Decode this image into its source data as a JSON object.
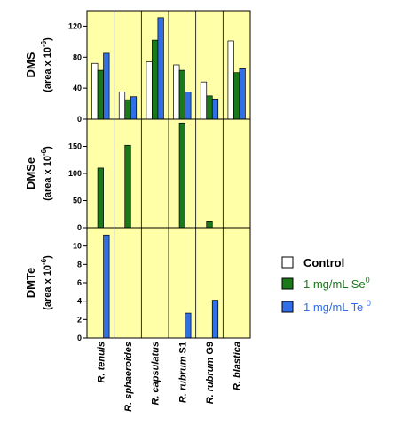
{
  "chart_data": {
    "type": "bar",
    "categories": [
      {
        "genus": "R.",
        "species": "tenuis",
        "strain": ""
      },
      {
        "genus": "R.",
        "species": "sphaeroides",
        "strain": ""
      },
      {
        "genus": "R.",
        "species": "capsulatus",
        "strain": ""
      },
      {
        "genus": "R.",
        "species": "rubrum",
        "strain": "S1"
      },
      {
        "genus": "R.",
        "species": "rubrum",
        "strain": "G9"
      },
      {
        "genus": "R.",
        "species": "blastica",
        "strain": ""
      }
    ],
    "legend": [
      {
        "label": "Control",
        "sup": "",
        "color": "#ffffff",
        "text_color": "#000000",
        "bold": true
      },
      {
        "label": "1 mg/mL Se",
        "sup": "0",
        "color": "#1a7a1a",
        "text_color": "#1a7a1a",
        "bold": false
      },
      {
        "label": "1 mg/mL Te ",
        "sup": "0",
        "color": "#2f6fe8",
        "text_color": "#2f6fe8",
        "bold": false
      }
    ],
    "panel_background": "#ffffa8",
    "panels": [
      {
        "id": "dms",
        "ylabel": "DMS",
        "ylabel_sub": "(area  x  10",
        "ylabel_sup": "-6",
        "ylabel_end": ")",
        "ylim": [
          0,
          140
        ],
        "ticks": [
          0,
          40,
          80,
          120
        ],
        "series": [
          [
            72,
            35,
            74,
            70,
            48,
            101
          ],
          [
            63,
            25,
            102,
            63,
            30,
            60
          ],
          [
            85,
            29,
            131,
            35,
            26,
            65
          ]
        ]
      },
      {
        "id": "dmse",
        "ylabel": "DMSe",
        "ylabel_sub": "(area  x  10",
        "ylabel_sup": "-6",
        "ylabel_end": ")",
        "ylim": [
          0,
          200
        ],
        "ticks": [
          0,
          50,
          100,
          150
        ],
        "series": [
          [
            0,
            0,
            0,
            0,
            0,
            0
          ],
          [
            110,
            152,
            0,
            193,
            11,
            0
          ],
          [
            0,
            0,
            0,
            0,
            0,
            0
          ]
        ]
      },
      {
        "id": "dmte",
        "ylabel": "DMTe",
        "ylabel_sub": "(area  x  10",
        "ylabel_sup": "-6",
        "ylabel_end": ")",
        "ylim": [
          0,
          12
        ],
        "ticks": [
          0,
          2,
          4,
          6,
          8,
          10
        ],
        "series": [
          [
            0,
            0,
            0,
            0,
            0,
            0
          ],
          [
            0,
            0,
            0,
            0,
            0,
            0
          ],
          [
            11.2,
            0,
            0,
            2.7,
            4.1,
            0
          ]
        ]
      }
    ]
  }
}
